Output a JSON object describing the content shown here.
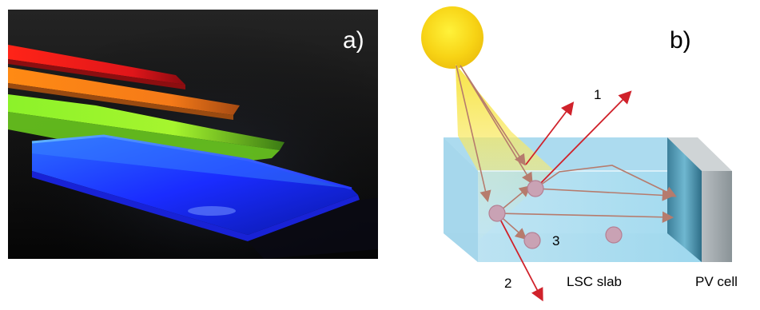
{
  "panel_a": {
    "label": "a)"
  },
  "panel_b": {
    "label": "b)",
    "path_labels": [
      "1",
      "2",
      "3"
    ],
    "slab_label": "LSC slab",
    "cell_label": "PV cell"
  },
  "colors": {
    "sun": "#f7d315",
    "slab": "#a9dbee",
    "pv_cell": "#9aa4aa",
    "ray_red": "#d0222b",
    "ray_brown": "#b67b6d",
    "emitter": "#c89fb0"
  }
}
